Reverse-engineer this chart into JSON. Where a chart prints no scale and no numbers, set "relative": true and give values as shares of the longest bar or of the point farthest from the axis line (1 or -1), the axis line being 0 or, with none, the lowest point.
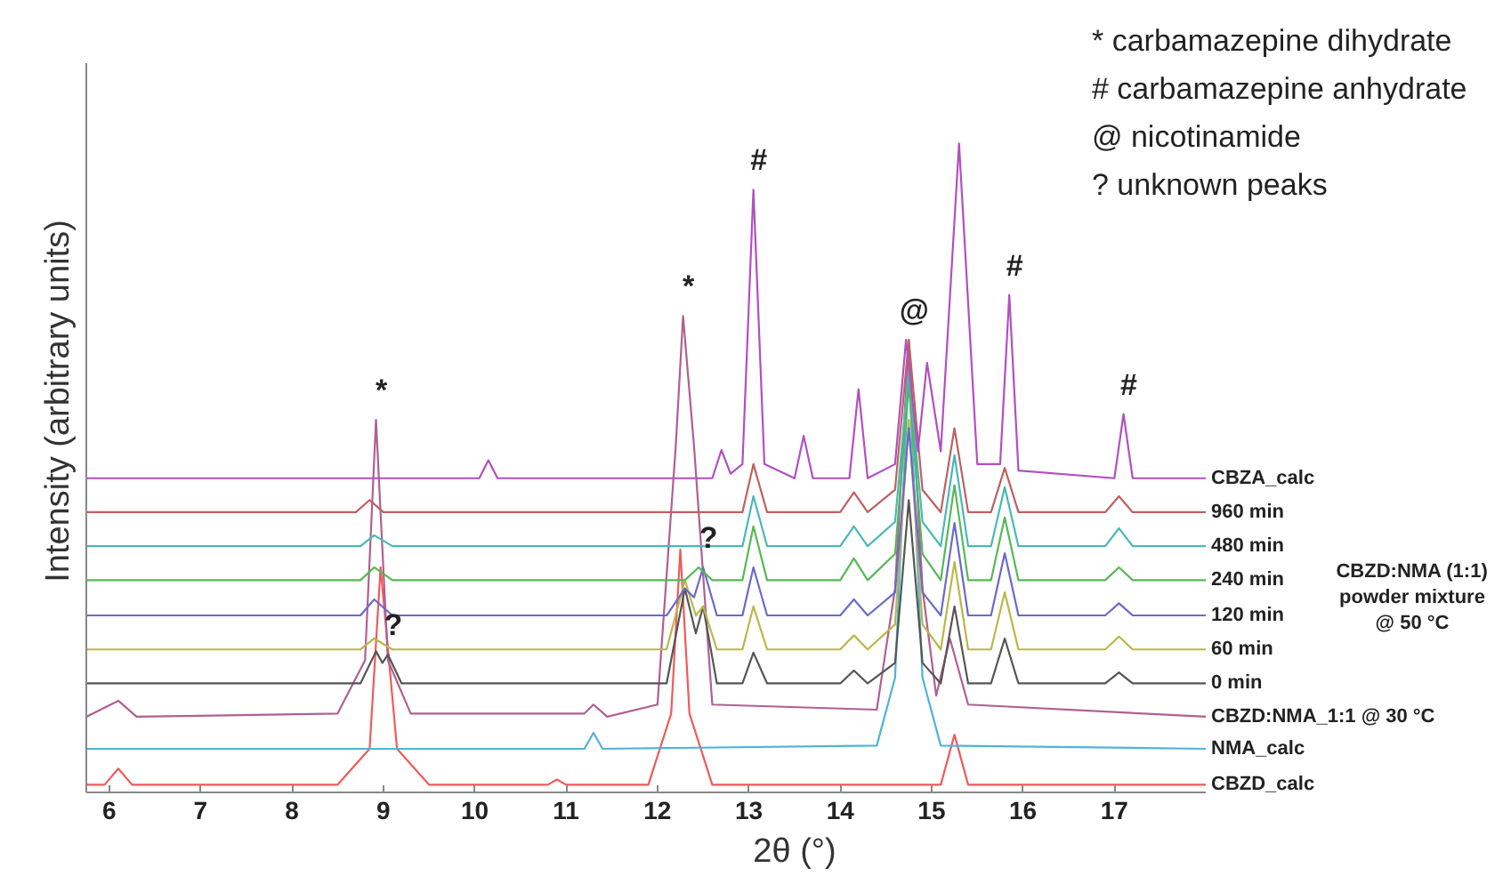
{
  "chart_data": {
    "type": "line",
    "relative": true,
    "xlabel": "2θ (°)",
    "ylabel": "Intensity (arbitrary units)",
    "xlim": [
      5.75,
      18.0
    ],
    "xticks": [
      6,
      7,
      8,
      9,
      10,
      11,
      12,
      13,
      14,
      15,
      16,
      17
    ],
    "grid": false,
    "marker": "none",
    "line_style": "solid",
    "series": [
      {
        "name": "CBZD_calc",
        "color": "#f05a5a",
        "x": [
          5.75,
          5.95,
          6.1,
          6.25,
          8.5,
          8.85,
          8.97,
          9.15,
          9.5,
          10.8,
          10.9,
          11.0,
          11.9,
          12.15,
          12.25,
          12.35,
          12.6,
          15.1,
          15.25,
          15.4,
          18.0
        ],
        "values": [
          0,
          0,
          0.025,
          0,
          0,
          0.056,
          0.339,
          0.056,
          0,
          0,
          0.008,
          0,
          0,
          0.111,
          0.367,
          0.111,
          0,
          0,
          0.078,
          0,
          0
        ]
      },
      {
        "name": "NMA_calc",
        "color": "#4fb3d9",
        "x": [
          5.75,
          11.2,
          11.3,
          11.4,
          14.4,
          14.6,
          14.75,
          14.9,
          15.1,
          18.0
        ],
        "values": [
          0.056,
          0.056,
          0.081,
          0.056,
          0.061,
          0.167,
          0.653,
          0.167,
          0.061,
          0.056
        ]
      },
      {
        "name": "CBZD:NMA_1:1 @ 30 °C",
        "color": "#b0608f",
        "x": [
          5.75,
          6.1,
          6.3,
          8.5,
          8.8,
          8.92,
          9.05,
          9.3,
          11.2,
          11.3,
          11.45,
          12.0,
          12.2,
          12.28,
          12.4,
          12.6,
          14.4,
          14.6,
          14.75,
          14.9,
          15.05,
          15.2,
          15.4,
          18.0
        ],
        "values": [
          0.106,
          0.131,
          0.106,
          0.111,
          0.194,
          0.569,
          0.194,
          0.111,
          0.111,
          0.125,
          0.106,
          0.125,
          0.528,
          0.731,
          0.528,
          0.125,
          0.117,
          0.306,
          0.694,
          0.306,
          0.139,
          0.228,
          0.125,
          0.106
        ]
      },
      {
        "name": "0 min",
        "color": "#555555",
        "x": [
          5.75,
          8.75,
          8.92,
          8.99,
          9.05,
          9.2,
          12.1,
          12.3,
          12.42,
          12.5,
          12.65,
          12.93,
          13.05,
          13.2,
          14.0,
          14.15,
          14.3,
          14.6,
          14.75,
          14.9,
          15.1,
          15.25,
          15.4,
          15.65,
          15.8,
          15.95,
          16.9,
          17.05,
          17.2,
          18.0
        ],
        "values": [
          0.158,
          0.158,
          0.208,
          0.19,
          0.203,
          0.158,
          0.158,
          0.306,
          0.236,
          0.278,
          0.158,
          0.158,
          0.206,
          0.158,
          0.158,
          0.178,
          0.158,
          0.19,
          0.444,
          0.19,
          0.158,
          0.278,
          0.158,
          0.158,
          0.228,
          0.158,
          0.158,
          0.175,
          0.158,
          0.158
        ]
      },
      {
        "name": "60 min",
        "color": "#b8b84a",
        "x": [
          5.75,
          8.75,
          8.9,
          9.1,
          12.1,
          12.3,
          12.42,
          12.5,
          12.65,
          12.93,
          13.05,
          13.2,
          14.0,
          14.15,
          14.3,
          14.6,
          14.75,
          14.9,
          15.1,
          15.25,
          15.4,
          15.65,
          15.8,
          15.95,
          16.9,
          17.05,
          17.2,
          18.0
        ],
        "values": [
          0.211,
          0.211,
          0.228,
          0.211,
          0.211,
          0.319,
          0.264,
          0.278,
          0.211,
          0.211,
          0.278,
          0.211,
          0.211,
          0.233,
          0.211,
          0.25,
          0.569,
          0.25,
          0.211,
          0.347,
          0.211,
          0.211,
          0.3,
          0.211,
          0.211,
          0.231,
          0.211,
          0.211
        ]
      },
      {
        "name": "120 min",
        "color": "#6a6acb",
        "x": [
          5.75,
          8.75,
          8.9,
          9.1,
          12.1,
          12.3,
          12.4,
          12.5,
          12.65,
          12.93,
          13.05,
          13.2,
          14.0,
          14.15,
          14.3,
          14.6,
          14.75,
          14.9,
          15.1,
          15.25,
          15.4,
          15.65,
          15.8,
          15.95,
          16.9,
          17.05,
          17.2,
          18.0
        ],
        "values": [
          0.264,
          0.264,
          0.289,
          0.264,
          0.264,
          0.306,
          0.292,
          0.339,
          0.264,
          0.264,
          0.339,
          0.264,
          0.264,
          0.289,
          0.264,
          0.3,
          0.556,
          0.3,
          0.264,
          0.408,
          0.264,
          0.264,
          0.361,
          0.264,
          0.264,
          0.283,
          0.264,
          0.264
        ]
      },
      {
        "name": "240 min",
        "color": "#55b855",
        "x": [
          5.75,
          8.75,
          8.9,
          9.1,
          12.3,
          12.45,
          12.6,
          12.93,
          13.05,
          13.2,
          14.0,
          14.15,
          14.3,
          14.6,
          14.75,
          14.9,
          15.1,
          15.25,
          15.4,
          15.65,
          15.8,
          15.95,
          16.9,
          17.05,
          17.2,
          18.0
        ],
        "values": [
          0.319,
          0.319,
          0.339,
          0.319,
          0.319,
          0.339,
          0.319,
          0.319,
          0.403,
          0.319,
          0.319,
          0.353,
          0.319,
          0.36,
          0.625,
          0.36,
          0.319,
          0.467,
          0.319,
          0.319,
          0.417,
          0.319,
          0.319,
          0.339,
          0.319,
          0.319
        ]
      },
      {
        "name": "480 min",
        "color": "#4ab8b8",
        "x": [
          5.75,
          8.75,
          8.9,
          9.1,
          12.93,
          13.05,
          13.2,
          14.0,
          14.15,
          14.3,
          14.6,
          14.75,
          14.9,
          15.1,
          15.25,
          15.4,
          15.65,
          15.8,
          15.95,
          16.9,
          17.05,
          17.2,
          18.0
        ],
        "values": [
          0.372,
          0.372,
          0.389,
          0.372,
          0.372,
          0.45,
          0.372,
          0.372,
          0.403,
          0.372,
          0.41,
          0.647,
          0.41,
          0.372,
          0.514,
          0.372,
          0.372,
          0.464,
          0.372,
          0.372,
          0.4,
          0.372,
          0.372
        ]
      },
      {
        "name": "960 min",
        "color": "#c06060",
        "x": [
          5.75,
          8.7,
          8.85,
          9.0,
          12.93,
          13.05,
          13.2,
          14.0,
          14.15,
          14.3,
          14.6,
          14.75,
          14.9,
          15.1,
          15.25,
          15.4,
          15.65,
          15.8,
          15.95,
          16.9,
          17.05,
          17.2,
          18.0
        ],
        "values": [
          0.425,
          0.425,
          0.444,
          0.425,
          0.425,
          0.5,
          0.425,
          0.425,
          0.456,
          0.425,
          0.46,
          0.694,
          0.46,
          0.425,
          0.556,
          0.425,
          0.425,
          0.494,
          0.425,
          0.425,
          0.45,
          0.425,
          0.425
        ]
      },
      {
        "name": "CBZA_calc",
        "color": "#b050c0",
        "x": [
          5.75,
          10.05,
          10.15,
          10.25,
          12.6,
          12.7,
          12.8,
          12.93,
          13.05,
          13.17,
          13.5,
          13.6,
          13.7,
          14.1,
          14.2,
          14.3,
          14.6,
          14.72,
          14.85,
          14.95,
          15.1,
          15.3,
          15.5,
          15.75,
          15.85,
          15.95,
          17.0,
          17.1,
          17.2,
          18.0
        ],
        "values": [
          0.478,
          0.478,
          0.506,
          0.478,
          0.478,
          0.522,
          0.485,
          0.5,
          0.928,
          0.5,
          0.478,
          0.544,
          0.478,
          0.478,
          0.617,
          0.478,
          0.5,
          0.694,
          0.52,
          0.658,
          0.52,
          1.0,
          0.5,
          0.5,
          0.764,
          0.49,
          0.478,
          0.578,
          0.478,
          0.478
        ]
      }
    ],
    "annotations": [
      {
        "text": "*",
        "x": 8.92,
        "y": 0.569
      },
      {
        "text": "*",
        "x": 12.28,
        "y": 0.731
      },
      {
        "text": "#",
        "x": 13.05,
        "y": 0.928
      },
      {
        "text": "@",
        "x": 14.75,
        "y": 0.694
      },
      {
        "text": "#",
        "x": 15.85,
        "y": 0.764
      },
      {
        "text": "#",
        "x": 17.1,
        "y": 0.578
      },
      {
        "text": "?",
        "x": 9.05,
        "y": 0.203
      },
      {
        "text": "?",
        "x": 12.5,
        "y": 0.339
      },
      "* carbamazepine dihydrate",
      "# carbamazepine anhydrate",
      "@ nicotinamide",
      "? unknown peaks",
      "CBZD:NMA (1:1) powder mixture @ 50 °C"
    ]
  }
}
